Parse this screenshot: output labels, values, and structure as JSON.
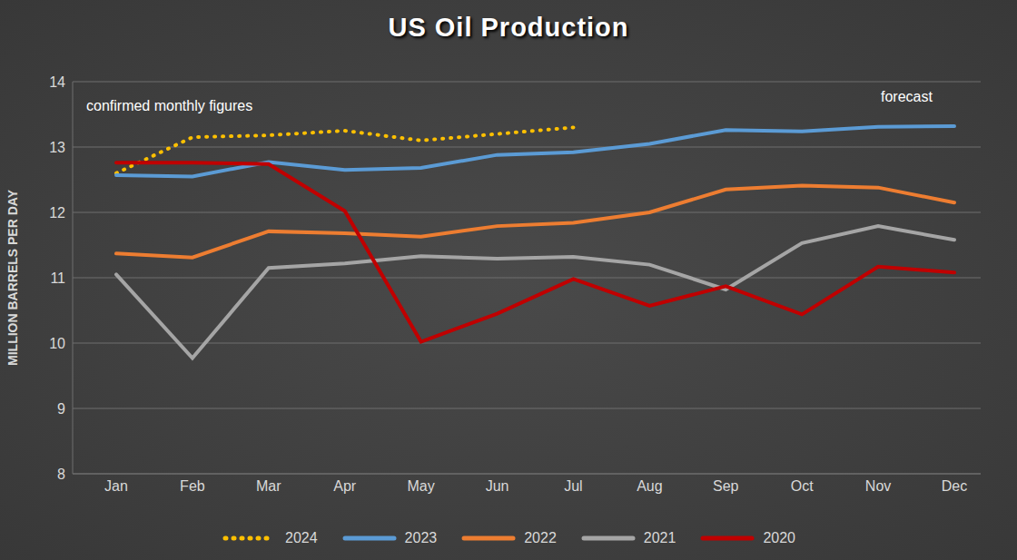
{
  "chart_data": {
    "type": "line",
    "title": "US Oil Production",
    "y_label": "MILLION BARRELS PER DAY",
    "annotations": [
      "confirmed monthly figures",
      "forecast"
    ],
    "categories": [
      "Jan",
      "Feb",
      "Mar",
      "Apr",
      "May",
      "Jun",
      "Jul",
      "Aug",
      "Sep",
      "Oct",
      "Nov",
      "Dec"
    ],
    "series": [
      {
        "name": "2024",
        "color": "#ffc000",
        "line_style": "dotted",
        "values": [
          12.6,
          13.15,
          13.18,
          13.25,
          13.1,
          13.2,
          13.3,
          null,
          null,
          null,
          null,
          null
        ]
      },
      {
        "name": "2023",
        "color": "#5b9bd5",
        "line_style": "solid",
        "values": [
          12.57,
          12.55,
          12.77,
          12.65,
          12.68,
          12.88,
          12.92,
          13.05,
          13.26,
          13.24,
          13.31,
          13.32
        ]
      },
      {
        "name": "2022",
        "color": "#ed7d31",
        "line_style": "solid",
        "values": [
          11.37,
          11.31,
          11.71,
          11.68,
          11.63,
          11.79,
          11.84,
          12.0,
          12.35,
          12.41,
          12.38,
          12.15
        ]
      },
      {
        "name": "2021",
        "color": "#a5a5a5",
        "line_style": "solid",
        "values": [
          11.05,
          9.77,
          11.15,
          11.22,
          11.33,
          11.29,
          11.32,
          11.2,
          10.82,
          11.53,
          11.79,
          11.58
        ]
      },
      {
        "name": "2020",
        "color": "#c00000",
        "line_style": "solid",
        "values": [
          12.76,
          12.76,
          12.74,
          12.02,
          10.02,
          10.45,
          10.98,
          10.57,
          10.87,
          10.44,
          11.17,
          11.08
        ]
      }
    ],
    "ylim": [
      8,
      14
    ],
    "yticks": [
      8,
      9,
      10,
      11,
      12,
      13,
      14
    ],
    "grid": true,
    "legend": "bottom"
  }
}
